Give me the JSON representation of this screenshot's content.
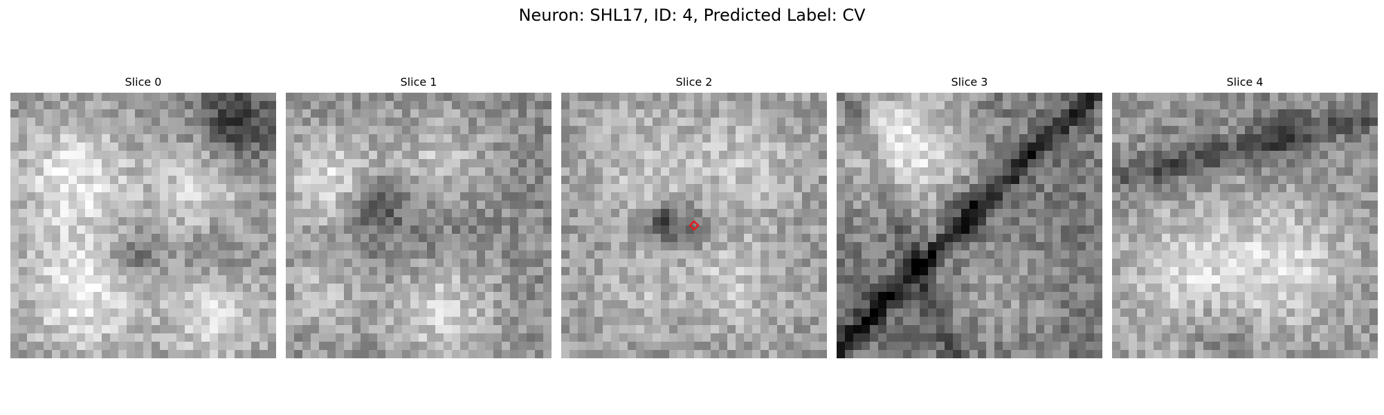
{
  "title": "Neuron: SHL17, ID: 4, Predicted Label: CV",
  "grid_size": 32,
  "marker_color": "#e41a1c",
  "panels": [
    {
      "label": "Slice 0",
      "seed": 11,
      "has_marker": false
    },
    {
      "label": "Slice 1",
      "seed": 23,
      "has_marker": false
    },
    {
      "label": "Slice 2",
      "seed": 37,
      "has_marker": true
    },
    {
      "label": "Slice 3",
      "seed": 41,
      "has_marker": false
    },
    {
      "label": "Slice 4",
      "seed": 59,
      "has_marker": false
    }
  ]
}
